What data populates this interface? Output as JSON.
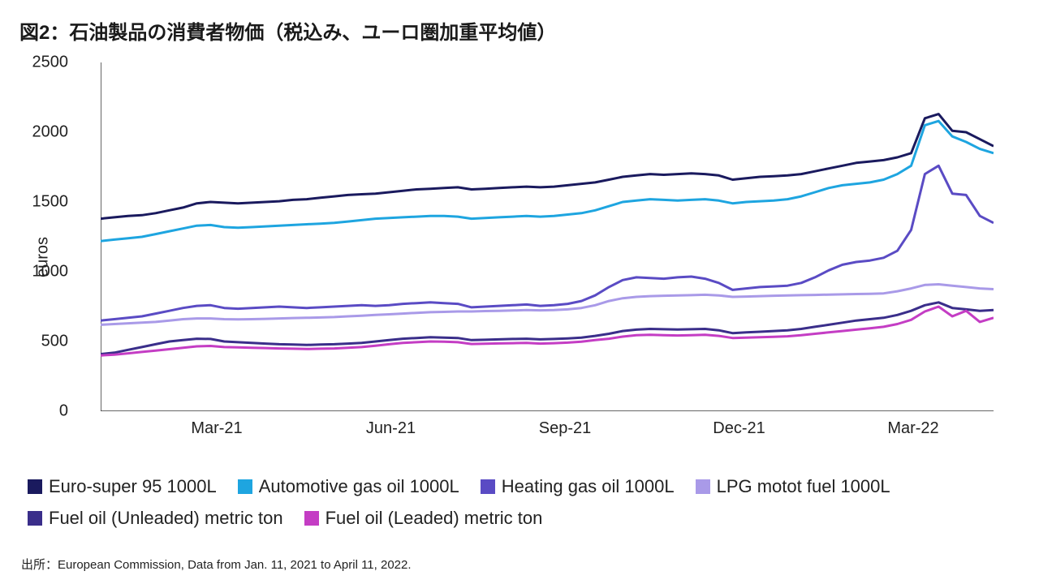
{
  "title": "図2：石油製品の消費者物価（税込み、ユーロ圏加重平均値）",
  "source": "出所：European Commission, Data from Jan. 11, 2021 to April 11, 2022.",
  "chart": {
    "type": "line",
    "ylabel": "euros",
    "ylim": [
      0,
      2500
    ],
    "ytick_step": 500,
    "yticks": [
      0,
      500,
      1000,
      1500,
      2000,
      2500
    ],
    "xticks": [
      "Mar-21",
      "Jun-21",
      "Sep-21",
      "Dec-21",
      "Mar-22"
    ],
    "xtick_positions": [
      0.13,
      0.325,
      0.52,
      0.715,
      0.91
    ],
    "n_points": 66,
    "background_color": "#ffffff",
    "axis_color": "#333333",
    "line_width": 3,
    "label_fontsize": 20,
    "tick_fontsize": 20,
    "series": [
      {
        "name": "Euro-super 95 1000L",
        "color": "#1a1a5e",
        "values": [
          1380,
          1390,
          1400,
          1405,
          1420,
          1440,
          1460,
          1490,
          1500,
          1495,
          1490,
          1495,
          1500,
          1505,
          1515,
          1520,
          1530,
          1540,
          1550,
          1555,
          1560,
          1570,
          1580,
          1590,
          1595,
          1600,
          1605,
          1590,
          1595,
          1600,
          1605,
          1610,
          1605,
          1610,
          1620,
          1630,
          1640,
          1660,
          1680,
          1690,
          1700,
          1695,
          1700,
          1705,
          1700,
          1690,
          1660,
          1670,
          1680,
          1685,
          1690,
          1700,
          1720,
          1740,
          1760,
          1780,
          1790,
          1800,
          1820,
          1850,
          2100,
          2130,
          2010,
          2000,
          1950,
          1900
        ]
      },
      {
        "name": "Automotive gas oil 1000L",
        "color": "#1ea5e0",
        "values": [
          1220,
          1230,
          1240,
          1250,
          1270,
          1290,
          1310,
          1330,
          1335,
          1320,
          1315,
          1320,
          1325,
          1330,
          1335,
          1340,
          1345,
          1350,
          1360,
          1370,
          1380,
          1385,
          1390,
          1395,
          1400,
          1400,
          1395,
          1380,
          1385,
          1390,
          1395,
          1400,
          1395,
          1400,
          1410,
          1420,
          1440,
          1470,
          1500,
          1510,
          1520,
          1515,
          1510,
          1515,
          1520,
          1510,
          1490,
          1500,
          1505,
          1510,
          1520,
          1540,
          1570,
          1600,
          1620,
          1630,
          1640,
          1660,
          1700,
          1760,
          2050,
          2080,
          1970,
          1930,
          1880,
          1850
        ]
      },
      {
        "name": "Heating gas oil 1000L",
        "color": "#5a4bc4",
        "values": [
          650,
          660,
          670,
          680,
          700,
          720,
          740,
          755,
          760,
          740,
          735,
          740,
          745,
          750,
          745,
          740,
          745,
          750,
          755,
          760,
          755,
          760,
          770,
          775,
          780,
          775,
          770,
          745,
          750,
          755,
          760,
          765,
          755,
          760,
          770,
          790,
          830,
          890,
          940,
          960,
          955,
          950,
          960,
          965,
          950,
          920,
          870,
          880,
          890,
          895,
          900,
          920,
          960,
          1010,
          1050,
          1070,
          1080,
          1100,
          1150,
          1300,
          1700,
          1760,
          1560,
          1550,
          1400,
          1350
        ]
      },
      {
        "name": "LPG motot fuel 1000L",
        "color": "#a99ae8",
        "values": [
          620,
          625,
          630,
          635,
          640,
          650,
          660,
          665,
          665,
          660,
          658,
          660,
          662,
          665,
          668,
          670,
          672,
          675,
          680,
          685,
          690,
          695,
          700,
          705,
          710,
          712,
          715,
          715,
          718,
          720,
          722,
          725,
          723,
          725,
          730,
          740,
          760,
          790,
          810,
          820,
          825,
          828,
          830,
          832,
          835,
          830,
          820,
          822,
          825,
          828,
          830,
          832,
          834,
          836,
          838,
          840,
          842,
          845,
          860,
          880,
          905,
          910,
          900,
          890,
          880,
          875
        ]
      },
      {
        "name": "Fuel oil (Unleaded) metric ton",
        "color": "#3a2e8a",
        "values": [
          410,
          420,
          440,
          460,
          480,
          500,
          510,
          520,
          518,
          500,
          495,
          490,
          485,
          480,
          478,
          475,
          478,
          480,
          485,
          490,
          500,
          510,
          520,
          525,
          530,
          528,
          525,
          510,
          512,
          515,
          518,
          520,
          515,
          518,
          522,
          528,
          540,
          555,
          575,
          585,
          590,
          588,
          586,
          588,
          590,
          580,
          560,
          565,
          570,
          575,
          580,
          590,
          605,
          620,
          635,
          650,
          660,
          670,
          690,
          720,
          760,
          780,
          740,
          730,
          720,
          725
        ]
      },
      {
        "name": "Fuel oil (Leaded) metric ton",
        "color": "#c43dc4",
        "values": [
          400,
          405,
          415,
          425,
          435,
          445,
          455,
          465,
          468,
          460,
          458,
          455,
          453,
          450,
          448,
          446,
          448,
          450,
          455,
          460,
          470,
          480,
          490,
          495,
          500,
          498,
          495,
          482,
          484,
          486,
          488,
          490,
          485,
          488,
          492,
          498,
          510,
          520,
          535,
          545,
          548,
          545,
          543,
          545,
          548,
          540,
          525,
          528,
          531,
          534,
          537,
          545,
          555,
          565,
          575,
          585,
          595,
          605,
          625,
          655,
          715,
          750,
          680,
          720,
          640,
          670
        ]
      }
    ]
  },
  "legend": {
    "swatch_size": 18,
    "fontsize": 22
  }
}
